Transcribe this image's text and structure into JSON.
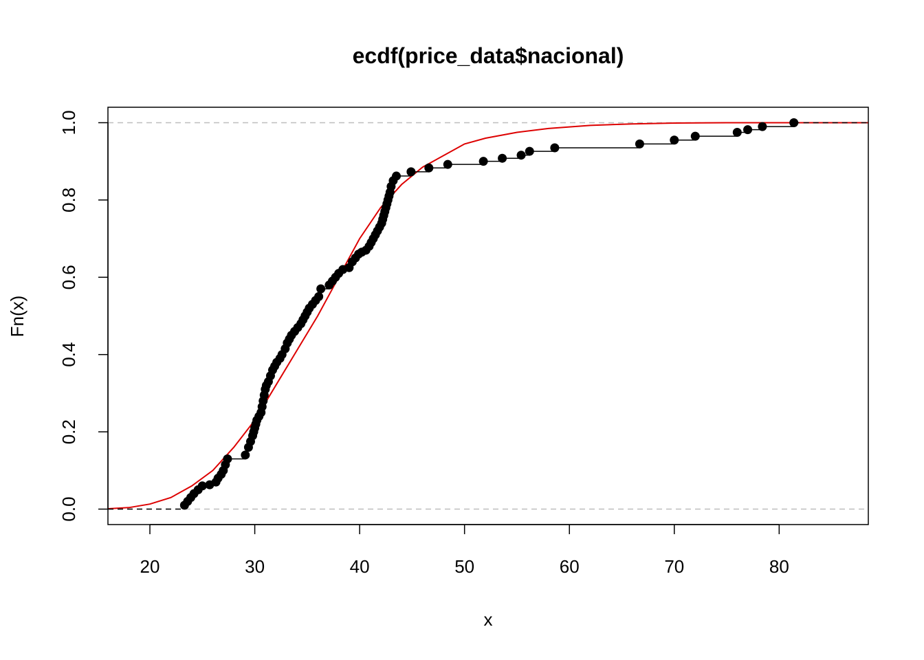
{
  "chart_data": {
    "type": "line",
    "title": "ecdf(price_data$nacional)",
    "xlabel": "x",
    "ylabel": "Fn(x)",
    "xlim": [
      16,
      88.5
    ],
    "ylim": [
      -0.04,
      1.04
    ],
    "x_ticks": [
      "20",
      "30",
      "40",
      "50",
      "60",
      "70",
      "80"
    ],
    "y_ticks": [
      "0.0",
      "0.2",
      "0.4",
      "0.6",
      "0.8",
      "1.0"
    ],
    "reference_lines": [
      0,
      1
    ],
    "grid": false,
    "legend": "none",
    "colors": {
      "ecdf": "#000000",
      "fitted": "#DD0000",
      "reference": "#BEBEBE"
    },
    "series": [
      {
        "kind": "ecdf-steps",
        "x": [
          23.3,
          23.6,
          23.9,
          24.2,
          24.6,
          25.0,
          25.7,
          26.3,
          26.5,
          26.8,
          27.0,
          27.2,
          27.4,
          29.1,
          29.4,
          29.6,
          29.8,
          29.9,
          30.0,
          30.1,
          30.2,
          30.4,
          30.6,
          30.7,
          30.8,
          30.9,
          31.0,
          31.1,
          31.3,
          31.5,
          31.7,
          31.9,
          32.1,
          32.4,
          32.6,
          32.9,
          33.1,
          33.3,
          33.5,
          33.8,
          34.1,
          34.4,
          34.6,
          34.8,
          35.0,
          35.2,
          35.5,
          35.8,
          36.1,
          36.3,
          37.1,
          37.4,
          37.7,
          38.0,
          38.4,
          39.0,
          39.3,
          39.6,
          39.9,
          40.2,
          40.6,
          40.9,
          41.1,
          41.3,
          41.5,
          41.7,
          41.9,
          42.1,
          42.2,
          42.3,
          42.4,
          42.5,
          42.6,
          42.7,
          42.8,
          42.9,
          43.0,
          43.2,
          43.5,
          44.9,
          46.6,
          48.4,
          51.8,
          53.6,
          55.4,
          56.2,
          58.6,
          66.7,
          70.0,
          72.0,
          76.0,
          77.0,
          78.4,
          81.4
        ],
        "y": [
          0.01,
          0.02,
          0.03,
          0.04,
          0.05,
          0.06,
          0.063,
          0.07,
          0.08,
          0.09,
          0.1,
          0.115,
          0.13,
          0.14,
          0.16,
          0.175,
          0.19,
          0.2,
          0.21,
          0.22,
          0.23,
          0.24,
          0.25,
          0.265,
          0.28,
          0.295,
          0.31,
          0.32,
          0.33,
          0.345,
          0.36,
          0.37,
          0.38,
          0.39,
          0.4,
          0.415,
          0.43,
          0.44,
          0.45,
          0.46,
          0.47,
          0.48,
          0.49,
          0.5,
          0.51,
          0.52,
          0.53,
          0.54,
          0.55,
          0.57,
          0.58,
          0.59,
          0.6,
          0.61,
          0.62,
          0.625,
          0.64,
          0.65,
          0.66,
          0.665,
          0.67,
          0.68,
          0.69,
          0.7,
          0.71,
          0.72,
          0.73,
          0.74,
          0.75,
          0.76,
          0.77,
          0.78,
          0.79,
          0.8,
          0.81,
          0.82,
          0.835,
          0.85,
          0.862,
          0.873,
          0.883,
          0.892,
          0.9,
          0.908,
          0.916,
          0.926,
          0.935,
          0.945,
          0.955,
          0.965,
          0.975,
          0.982,
          0.99,
          1.0
        ]
      },
      {
        "kind": "fitted-curve",
        "x": [
          16,
          18,
          20,
          22,
          24,
          26,
          28,
          30,
          32,
          34,
          36,
          38,
          40,
          42,
          44,
          46,
          48,
          50,
          52,
          55,
          58,
          62,
          66,
          70,
          75,
          80,
          88.5
        ],
        "y": [
          0.001,
          0.004,
          0.013,
          0.03,
          0.06,
          0.1,
          0.16,
          0.23,
          0.32,
          0.41,
          0.5,
          0.6,
          0.7,
          0.78,
          0.84,
          0.885,
          0.915,
          0.945,
          0.96,
          0.975,
          0.985,
          0.993,
          0.997,
          0.999,
          1.0,
          1.0,
          1.0
        ]
      }
    ]
  }
}
